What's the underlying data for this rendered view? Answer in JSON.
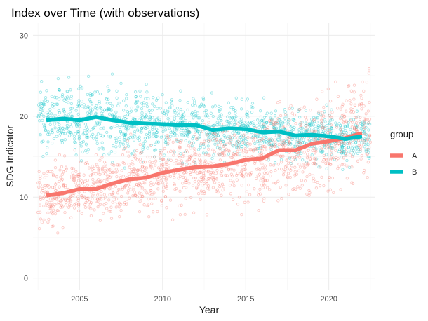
{
  "chart_data": {
    "type": "scatter",
    "title": "Index over Time (with observations)",
    "xlabel": "Year",
    "ylabel": "SDG Indicator",
    "xlim": [
      2002.2,
      2022.8
    ],
    "ylim": [
      -1.5,
      31.5
    ],
    "x_ticks": [
      2005,
      2010,
      2015,
      2020
    ],
    "y_ticks": [
      0,
      10,
      20,
      30
    ],
    "grid": true,
    "legend": {
      "title": "group",
      "placement": "right"
    },
    "series": [
      {
        "name": "A",
        "color": "#F8766D",
        "trend": {
          "x": [
            2003,
            2004,
            2005,
            2006,
            2007,
            2008,
            2009,
            2010,
            2011,
            2012,
            2013,
            2014,
            2015,
            2016,
            2017,
            2018,
            2019,
            2020,
            2021,
            2022
          ],
          "y": [
            10.2,
            10.5,
            11.0,
            11.0,
            11.7,
            12.2,
            12.4,
            13.0,
            13.4,
            13.7,
            13.8,
            14.1,
            14.6,
            14.8,
            15.8,
            15.8,
            16.6,
            16.9,
            17.3,
            17.9
          ]
        },
        "scatter_summary": {
          "spread": [
            3.2,
            3.1,
            3.2,
            3.4,
            3.6,
            3.8,
            3.9,
            3.9,
            4.0,
            4.0,
            4.1,
            4.2,
            4.3,
            4.4,
            4.6,
            4.8,
            5.0,
            5.3,
            5.5,
            5.5
          ],
          "points_per_year": 70
        }
      },
      {
        "name": "B",
        "color": "#00BFC4",
        "trend": {
          "x": [
            2003,
            2004,
            2005,
            2006,
            2007,
            2008,
            2009,
            2010,
            2011,
            2012,
            2013,
            2014,
            2015,
            2016,
            2017,
            2018,
            2019,
            2020,
            2021,
            2022
          ],
          "y": [
            19.5,
            19.7,
            19.5,
            19.9,
            19.5,
            19.2,
            19.1,
            19.0,
            18.9,
            18.9,
            18.3,
            18.5,
            18.4,
            18.0,
            18.1,
            17.6,
            17.7,
            17.5,
            17.2,
            17.5
          ]
        },
        "scatter_summary": {
          "spread": [
            4.2,
            4.2,
            4.2,
            4.1,
            4.0,
            3.9,
            3.8,
            3.6,
            3.4,
            3.3,
            3.1,
            3.0,
            2.9,
            2.8,
            2.7,
            2.7,
            2.6,
            2.6,
            2.5,
            2.5
          ],
          "points_per_year": 70
        }
      }
    ]
  }
}
